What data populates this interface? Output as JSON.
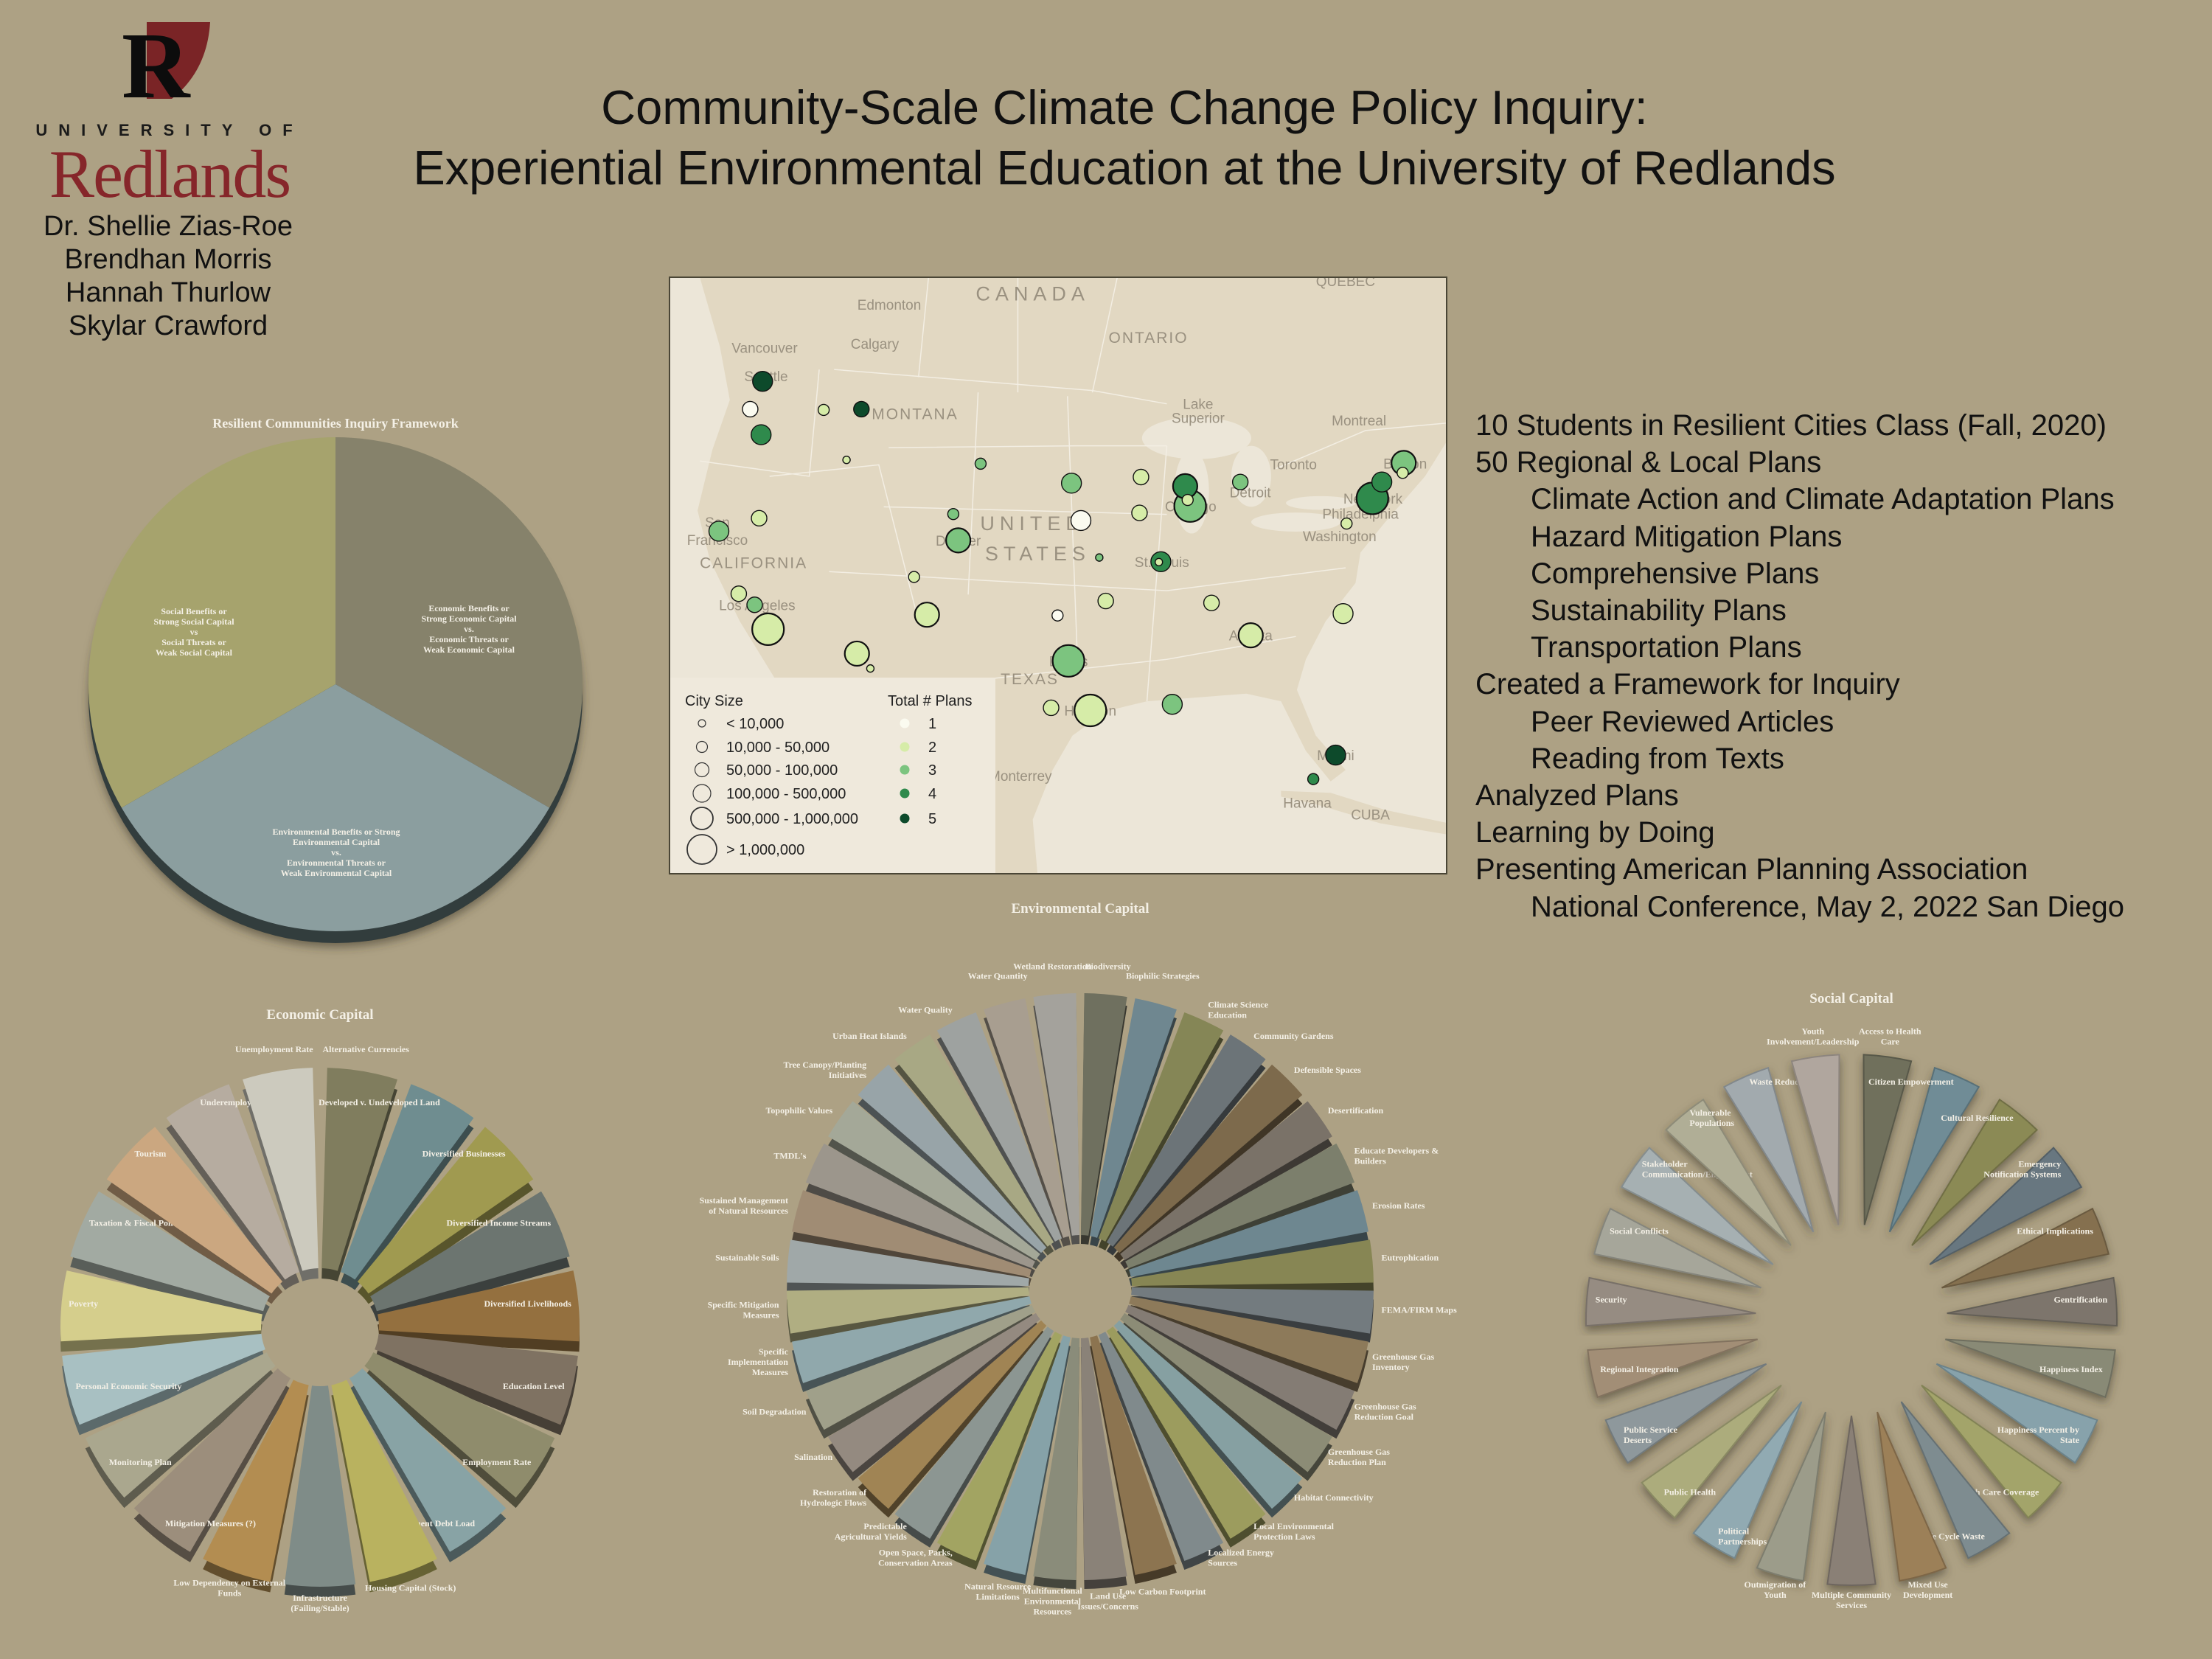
{
  "logo": {
    "mark": "R",
    "university_of": "UNIVERSITY OF",
    "name": "Redlands"
  },
  "authors": [
    "Dr. Shellie Zias-Roe",
    "Brendhan Morris",
    "Hannah Thurlow",
    "Skylar Crawford"
  ],
  "title": {
    "line1": "Community-Scale Climate Change Policy Inquiry:",
    "line2": "Experiential Environmental Education at the University of Redlands"
  },
  "colors": {
    "background": "#ada184",
    "brand_red": "#86262a",
    "map_land": "#e2d8c2",
    "map_water": "#ece6d8"
  },
  "summary": [
    {
      "text": "10 Students in Resilient Cities Class (Fall, 2020)",
      "indent": false
    },
    {
      "text": "50 Regional & Local Plans",
      "indent": false
    },
    {
      "text": "Climate Action and Climate Adaptation Plans",
      "indent": true
    },
    {
      "text": "Hazard Mitigation Plans",
      "indent": true
    },
    {
      "text": "Comprehensive Plans",
      "indent": true
    },
    {
      "text": "Sustainability Plans",
      "indent": true
    },
    {
      "text": "Transportation Plans",
      "indent": true
    },
    {
      "text": "Created a Framework for Inquiry",
      "indent": false
    },
    {
      "text": "Peer Reviewed Articles",
      "indent": true
    },
    {
      "text": "Reading from Texts",
      "indent": true
    },
    {
      "text": "Analyzed Plans",
      "indent": false
    },
    {
      "text": "Learning by Doing",
      "indent": false
    },
    {
      "text": "Presenting American Planning Association",
      "indent": false
    },
    {
      "text": "National Conference, May 2, 2022 San Diego",
      "indent": true
    }
  ],
  "framework": {
    "title": "Resilient Communities Inquiry Framework",
    "slices": [
      {
        "key": "economic",
        "color": "#86826b",
        "lines": [
          "Economic Benefits or",
          "Strong  Economic Capital",
          "vs.",
          "Economic Threats or",
          "Weak Economic Capital"
        ]
      },
      {
        "key": "environmental",
        "color": "#8b9e9f",
        "lines": [
          "Environmental Benefits or Strong",
          "Environmental Capital",
          "vs.",
          "Environmental Threats or",
          "Weak Environmental Capital"
        ]
      },
      {
        "key": "social",
        "color": "#a6a36d",
        "lines": [
          "Social Benefits or",
          "Strong Social Capital",
          "vs",
          "Social Threats or",
          "Weak Social Capital"
        ]
      }
    ]
  },
  "map": {
    "labels": [
      "CANADA",
      "Edmonton",
      "Calgary",
      "Vancouver",
      "ONTARIO",
      "QUEBEC",
      "Seattle",
      "MONTANA",
      "Lake",
      "Superior",
      "Montreal",
      "Toronto",
      "Detroit",
      "Boston",
      "New York",
      "Philadelphia",
      "Washington",
      "Chicago",
      "UNITED",
      "STATES",
      "St. Louis",
      "San",
      "Francisco",
      "CALIFORNIA",
      "Denver",
      "Los Angeles",
      "Atlanta",
      "Dallas",
      "TEXAS",
      "Houston",
      "Monterrey",
      "Miami",
      "Havana",
      "CUBA"
    ],
    "legend": {
      "city_size_title": "City Size",
      "city_sizes": [
        "< 10,000",
        "10,000 - 50,000",
        "50,000 - 100,000",
        "100,000 - 500,000",
        "500,000 - 1,000,000",
        "> 1,000,000"
      ],
      "plans_title": "Total # Plans",
      "plans": [
        {
          "label": "1",
          "color": "#fbfbf0"
        },
        {
          "label": "2",
          "color": "#d6eca8"
        },
        {
          "label": "3",
          "color": "#7cc47f"
        },
        {
          "label": "4",
          "color": "#2f8a4c"
        },
        {
          "label": "5",
          "color": "#0d4a2b"
        }
      ]
    },
    "markers": [
      {
        "size_class": 3,
        "plans": 5
      },
      {
        "size_class": 2,
        "plans": 1
      },
      {
        "size_class": 1,
        "plans": 2
      },
      {
        "size_class": 2,
        "plans": 5
      },
      {
        "size_class": 3,
        "plans": 4
      },
      {
        "size_class": 0,
        "plans": 2
      },
      {
        "size_class": 1,
        "plans": 3
      },
      {
        "size_class": 3,
        "plans": 3
      },
      {
        "size_class": 2,
        "plans": 2
      },
      {
        "size_class": 4,
        "plans": 4
      },
      {
        "size_class": 5,
        "plans": 3
      },
      {
        "size_class": 1,
        "plans": 2
      },
      {
        "size_class": 2,
        "plans": 3
      },
      {
        "size_class": 4,
        "plans": 3
      },
      {
        "size_class": 1,
        "plans": 2
      },
      {
        "size_class": 3,
        "plans": 4
      },
      {
        "size_class": 5,
        "plans": 4
      },
      {
        "size_class": 1,
        "plans": 2
      },
      {
        "size_class": 2,
        "plans": 2
      },
      {
        "size_class": 3,
        "plans": 1
      },
      {
        "size_class": 1,
        "plans": 3
      },
      {
        "size_class": 4,
        "plans": 3
      },
      {
        "size_class": 2,
        "plans": 2
      },
      {
        "size_class": 3,
        "plans": 3
      },
      {
        "size_class": 0,
        "plans": 3
      },
      {
        "size_class": 3,
        "plans": 4
      },
      {
        "size_class": 0,
        "plans": 2
      },
      {
        "size_class": 1,
        "plans": 2
      },
      {
        "size_class": 2,
        "plans": 2
      },
      {
        "size_class": 2,
        "plans": 3
      },
      {
        "size_class": 5,
        "plans": 2
      },
      {
        "size_class": 4,
        "plans": 2
      },
      {
        "size_class": 2,
        "plans": 2
      },
      {
        "size_class": 2,
        "plans": 2
      },
      {
        "size_class": 3,
        "plans": 2
      },
      {
        "size_class": 1,
        "plans": 1
      },
      {
        "size_class": 4,
        "plans": 2
      },
      {
        "size_class": 4,
        "plans": 2
      },
      {
        "size_class": 0,
        "plans": 2
      },
      {
        "size_class": 5,
        "plans": 3
      },
      {
        "size_class": 2,
        "plans": 2
      },
      {
        "size_class": 5,
        "plans": 2
      },
      {
        "size_class": 3,
        "plans": 3
      },
      {
        "size_class": 3,
        "plans": 5
      },
      {
        "size_class": 1,
        "plans": 4
      }
    ]
  },
  "economic_capital": {
    "title": "Economic Capital",
    "slices": [
      {
        "label": "Alternative Currencies",
        "color": "#807d5e"
      },
      {
        "label": "Developed v. Undeveloped Land",
        "color": "#6f8d90"
      },
      {
        "label": "Diversified Businesses",
        "color": "#a09a50"
      },
      {
        "label": "Diversified Income Streams",
        "color": "#6c7570"
      },
      {
        "label": "Diversified Livelihoods",
        "color": "#94703f"
      },
      {
        "label": "Education Level",
        "color": "#7f7262"
      },
      {
        "label": "Employment Rate",
        "color": "#8f8c6c"
      },
      {
        "label": "Government Debt Load",
        "color": "#88a3a5"
      },
      {
        "label": "Housing Capital (Stock)",
        "color": "#b9b25f"
      },
      {
        "label": "Infrastructure (Failing/Stable)",
        "color": "#7f8c88"
      },
      {
        "label": "Low Dependency on External Funds",
        "color": "#b38d51"
      },
      {
        "label": "Mitigation Measures (?)",
        "color": "#9c8e7c"
      },
      {
        "label": "Monitoring Plan",
        "color": "#aaa78e"
      },
      {
        "label": "Personal Economic Security",
        "color": "#a8c0c2"
      },
      {
        "label": "Poverty",
        "color": "#d5ce8c"
      },
      {
        "label": "Taxation & Fiscal Policies",
        "color": "#a2aaa2"
      },
      {
        "label": "Tourism",
        "color": "#cba780"
      },
      {
        "label": "Underemployment Rate",
        "color": "#b6aca0"
      },
      {
        "label": "Unemployment Rate",
        "color": "#cccabe"
      }
    ]
  },
  "environmental_capital": {
    "title": "Environmental Capital",
    "slices": [
      {
        "label": "Biodiversity",
        "color": "#6f705f"
      },
      {
        "label": "Biophilic Strategies",
        "color": "#6f8790"
      },
      {
        "label": "Climate Science Education",
        "color": "#858656"
      },
      {
        "label": "Community Gardens",
        "color": "#6c7478"
      },
      {
        "label": "Defensible Spaces",
        "color": "#7d6a4c"
      },
      {
        "label": "Desertification",
        "color": "#7a7268"
      },
      {
        "label": "Educate Developers & Builders",
        "color": "#7c7f6c"
      },
      {
        "label": "Erosion Rates",
        "color": "#6e8790"
      },
      {
        "label": "Eutrophication",
        "color": "#878654"
      },
      {
        "label": "FEMA/FIRM Maps",
        "color": "#737b7f"
      },
      {
        "label": "Greenhouse Gas Inventory",
        "color": "#8d7a5a"
      },
      {
        "label": "Greenhouse Gas Reduction Goal",
        "color": "#847c74"
      },
      {
        "label": "Greenhouse Gas Reduction Plan",
        "color": "#8c8c76"
      },
      {
        "label": "Habitat Connectivity",
        "color": "#86a0a2"
      },
      {
        "label": "Local Environmental Protection Laws",
        "color": "#9c9c5e"
      },
      {
        "label": "Localized Energy Sources",
        "color": "#808a8c"
      },
      {
        "label": "Low Carbon Footprint",
        "color": "#8c7450"
      },
      {
        "label": "Land Use Issues/Concerns",
        "color": "#8a8278"
      },
      {
        "label": "Multifunctional Environmental Resources",
        "color": "#8a8c7a"
      },
      {
        "label": "Natural Resource Limitations",
        "color": "#86a2a8"
      },
      {
        "label": "Open Space, Parks, Conservation Areas",
        "color": "#a2a462"
      },
      {
        "label": "Predictable Agricultural Yields",
        "color": "#8c9692"
      },
      {
        "label": "Restoration of Hydrologic Flows",
        "color": "#a08454"
      },
      {
        "label": "Salination",
        "color": "#948a80"
      },
      {
        "label": "Soil Degradation",
        "color": "#a0a08a"
      },
      {
        "label": "Specific Implementation Measures",
        "color": "#90a8ac"
      },
      {
        "label": "Specific Mitigation Measures",
        "color": "#b0ae82"
      },
      {
        "label": "Sustainable Soils",
        "color": "#a0a8a8"
      },
      {
        "label": "Sustained Management of Natural Resources",
        "color": "#a08c74"
      },
      {
        "label": "TMDL's",
        "color": "#9c968c"
      },
      {
        "label": "Topophilic Values",
        "color": "#a4a898"
      },
      {
        "label": "Tree Canopy/Planting Initiatives",
        "color": "#98a4a8"
      },
      {
        "label": "Urban Heat Islands",
        "color": "#a8a884"
      },
      {
        "label": "Water Quality",
        "color": "#9ea2a0"
      },
      {
        "label": "Water Quantity",
        "color": "#a89e90"
      },
      {
        "label": "Wetland Restoration",
        "color": "#a4a29c"
      }
    ]
  },
  "social_capital": {
    "title": "Social Capital",
    "slices": [
      {
        "label": "Access to Health Care",
        "color": "#6f6f5c"
      },
      {
        "label": "Citizen Empowerment",
        "color": "#6f8c96"
      },
      {
        "label": "Cultural Resilience",
        "color": "#8b8a55"
      },
      {
        "label": "Emergency Notification Systems",
        "color": "#687780"
      },
      {
        "label": "Ethical Implications",
        "color": "#85704f"
      },
      {
        "label": "Gentrification",
        "color": "#7d756c"
      },
      {
        "label": "Happiness Index",
        "color": "#898a76"
      },
      {
        "label": "Happiness Percent by State",
        "color": "#87a2ab"
      },
      {
        "label": "Health Care Coverage",
        "color": "#a3a46a"
      },
      {
        "label": "Life Cycle Waste",
        "color": "#7e8c90"
      },
      {
        "label": "Mixed Use Development",
        "color": "#9c8058"
      },
      {
        "label": "Multiple Community Services",
        "color": "#8a8076"
      },
      {
        "label": "Outmigration of Youth",
        "color": "#9c9c8a"
      },
      {
        "label": "Political Partnerships",
        "color": "#91aab2"
      },
      {
        "label": "Public Health",
        "color": "#acac7c"
      },
      {
        "label": "Public Service Deserts",
        "color": "#8e989c"
      },
      {
        "label": "Regional Integration",
        "color": "#a28e76"
      },
      {
        "label": "Security",
        "color": "#968c82"
      },
      {
        "label": "Social Conflicts",
        "color": "#a6a69a"
      },
      {
        "label": "Stakeholder Communication/Engagement",
        "color": "#a6b0b2"
      },
      {
        "label": "Vulnerable Populations",
        "color": "#b0ae96"
      },
      {
        "label": "Waste Reduction",
        "color": "#a2aaae"
      },
      {
        "label": "Youth Involvement/Leadership",
        "color": "#b0a69e"
      }
    ]
  }
}
